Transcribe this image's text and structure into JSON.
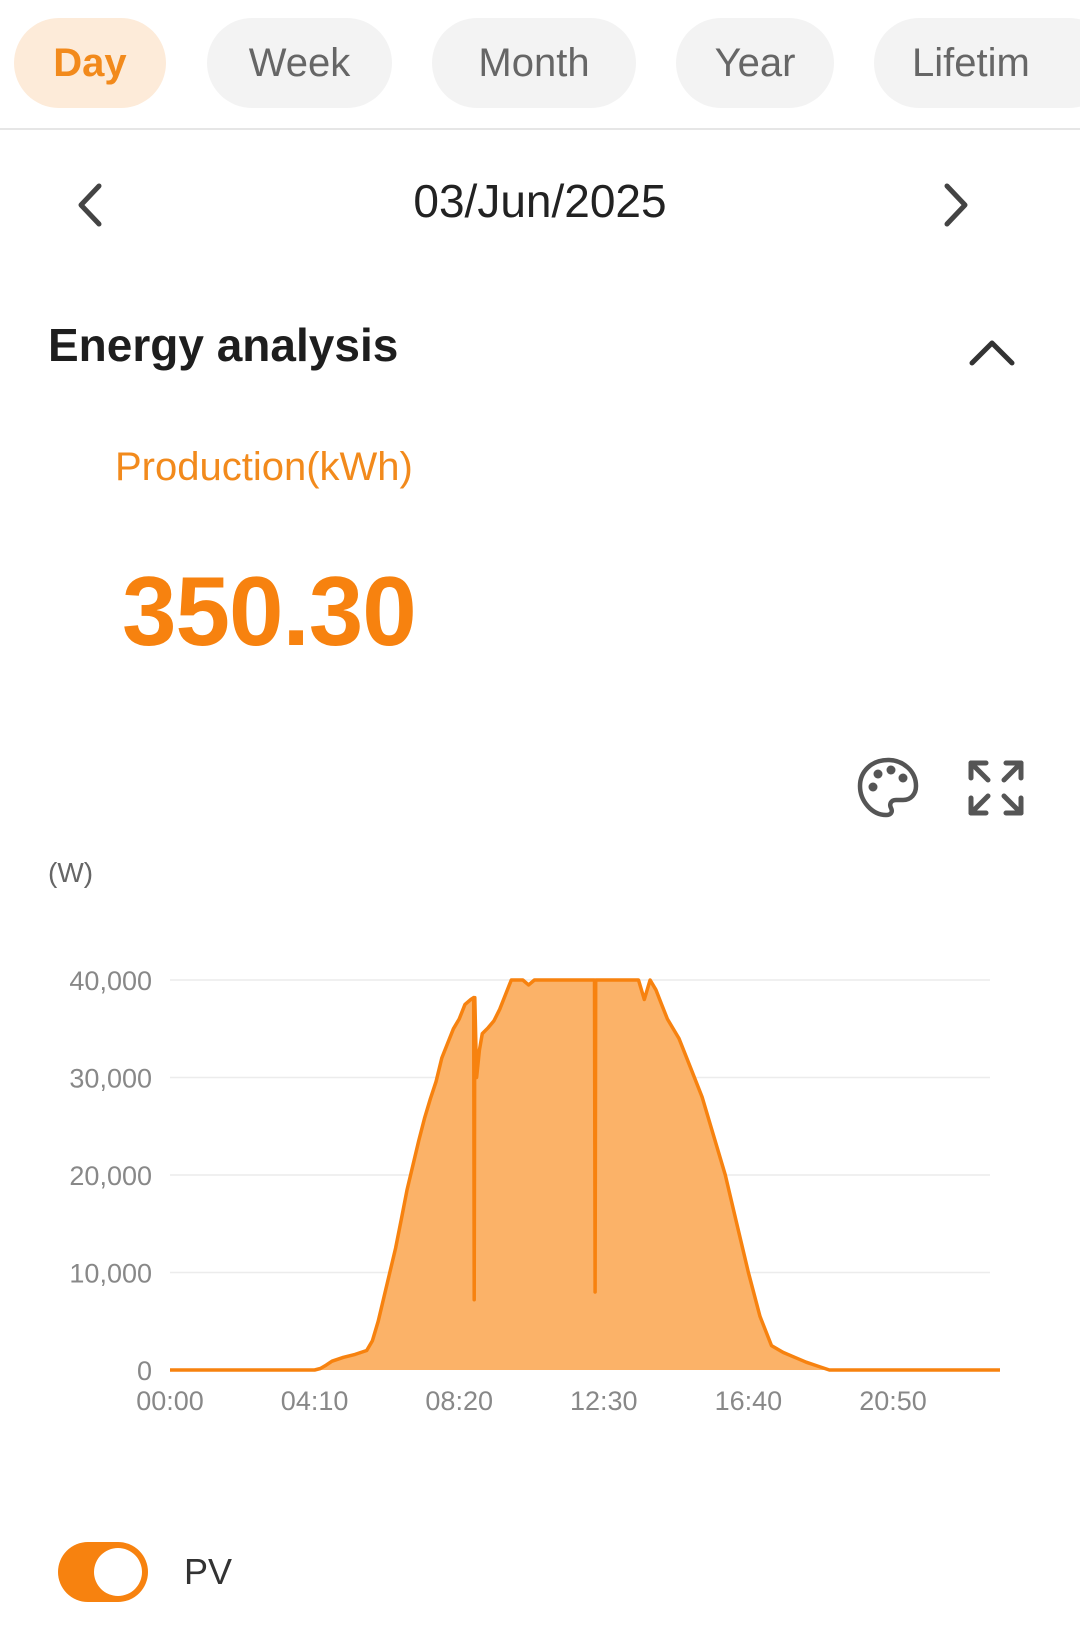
{
  "tabs": [
    {
      "label": "Day",
      "active": true
    },
    {
      "label": "Week",
      "active": false
    },
    {
      "label": "Month",
      "active": false
    },
    {
      "label": "Year",
      "active": false
    },
    {
      "label": "Lifetim",
      "active": false
    }
  ],
  "date_nav": {
    "date": "03/Jun/2025",
    "prev_icon": "chevron-left-icon",
    "next_icon": "chevron-right-icon"
  },
  "section": {
    "title": "Energy analysis",
    "collapse_icon": "chevron-up-icon"
  },
  "production": {
    "label": "Production(kWh)",
    "value": "350.30"
  },
  "toolbar": {
    "palette_icon": "palette-icon",
    "expand_icon": "expand-icon"
  },
  "colors": {
    "accent": "#f7820f",
    "accent_light": "#fdebd9",
    "area_fill": "#fbb268"
  },
  "chart_data": {
    "type": "area",
    "unit_label": "(W)",
    "x_tick_labels": [
      "00:00",
      "04:10",
      "08:20",
      "12:30",
      "16:40",
      "20:50"
    ],
    "y_tick_labels": [
      "0",
      "10,000",
      "20,000",
      "30,000",
      "40,000"
    ],
    "ylim": [
      0,
      40000
    ],
    "xlim_minutes": [
      0,
      1435
    ],
    "grid": true,
    "series": [
      {
        "name": "PV",
        "x": [
          "00:00",
          "04:10",
          "04:20",
          "04:30",
          "04:40",
          "05:00",
          "05:20",
          "05:40",
          "05:50",
          "06:00",
          "06:10",
          "06:20",
          "06:30",
          "06:40",
          "06:50",
          "07:00",
          "07:10",
          "07:20",
          "07:30",
          "07:40",
          "07:50",
          "08:00",
          "08:10",
          "08:20",
          "08:30",
          "08:40",
          "08:45",
          "08:46",
          "08:47",
          "08:50",
          "08:55",
          "09:00",
          "09:10",
          "09:20",
          "09:30",
          "09:40",
          "09:50",
          "10:00",
          "10:10",
          "10:20",
          "10:30",
          "10:40",
          "11:00",
          "11:30",
          "12:00",
          "12:10",
          "12:14",
          "12:15",
          "12:16",
          "12:20",
          "12:40",
          "13:00",
          "13:30",
          "13:40",
          "13:50",
          "14:00",
          "14:10",
          "14:20",
          "14:40",
          "15:00",
          "15:20",
          "15:40",
          "16:00",
          "16:20",
          "16:40",
          "17:00",
          "17:20",
          "17:40",
          "18:00",
          "18:20",
          "18:40",
          "19:00",
          "19:20",
          "19:40",
          "20:00",
          "20:20",
          "20:40",
          "21:00",
          "21:30",
          "22:00",
          "23:55"
        ],
        "values": [
          0,
          0,
          150,
          500,
          900,
          1300,
          1600,
          2000,
          3000,
          5000,
          7500,
          10000,
          12500,
          15500,
          18500,
          21000,
          23500,
          25800,
          27800,
          29600,
          32000,
          33500,
          35000,
          36000,
          37500,
          38000,
          38200,
          7200,
          38200,
          30000,
          32800,
          34500,
          35100,
          35800,
          37000,
          38500,
          40000,
          40000,
          40000,
          39500,
          40000,
          40000,
          40000,
          40000,
          40000,
          40000,
          40000,
          8000,
          40000,
          40000,
          40000,
          40000,
          40000,
          38000,
          40000,
          39000,
          37500,
          36000,
          34000,
          31000,
          28000,
          24000,
          20000,
          15000,
          10000,
          5500,
          2500,
          1800,
          1300,
          800,
          400,
          0,
          0,
          0,
          0,
          0,
          0,
          0,
          0,
          0,
          0
        ]
      }
    ]
  },
  "legend": {
    "label": "PV",
    "enabled": true
  }
}
